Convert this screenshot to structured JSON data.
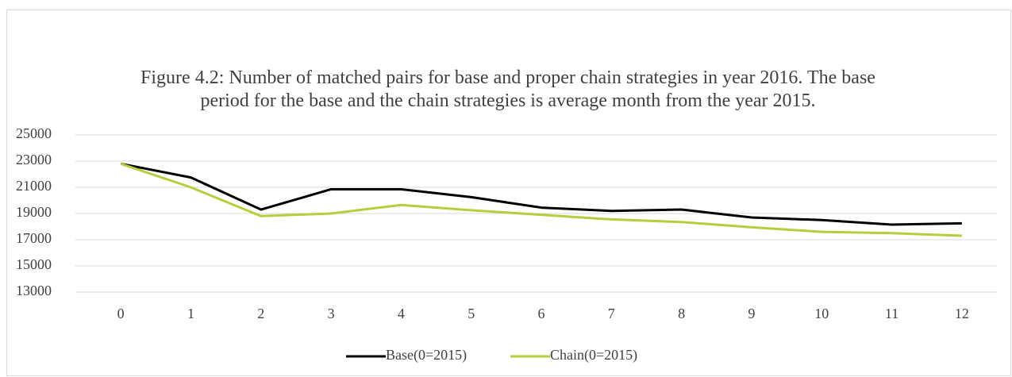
{
  "chart_data": {
    "type": "line",
    "title": "Figure 4.2: Number of matched pairs for base and proper chain strategies in year 2016. The base period for the base and the chain strategies is average month from the year 2015.",
    "categories": [
      "0",
      "1",
      "2",
      "3",
      "4",
      "5",
      "6",
      "7",
      "8",
      "9",
      "10",
      "11",
      "12"
    ],
    "series": [
      {
        "name": "Base(0=2015)",
        "color": "#000000",
        "values": [
          22800,
          21750,
          19300,
          20850,
          20850,
          20250,
          19450,
          19200,
          19300,
          18700,
          18500,
          18150,
          18250
        ]
      },
      {
        "name": "Chain(0=2015)",
        "color": "#b4cf3c",
        "values": [
          22800,
          21000,
          18800,
          19000,
          19650,
          19250,
          18900,
          18550,
          18350,
          17950,
          17600,
          17500,
          17300
        ]
      }
    ],
    "ylim": [
      13000,
      25000
    ],
    "yticks": [
      13000,
      15000,
      17000,
      19000,
      21000,
      23000,
      25000
    ],
    "grid": true,
    "legend": "bottom"
  }
}
